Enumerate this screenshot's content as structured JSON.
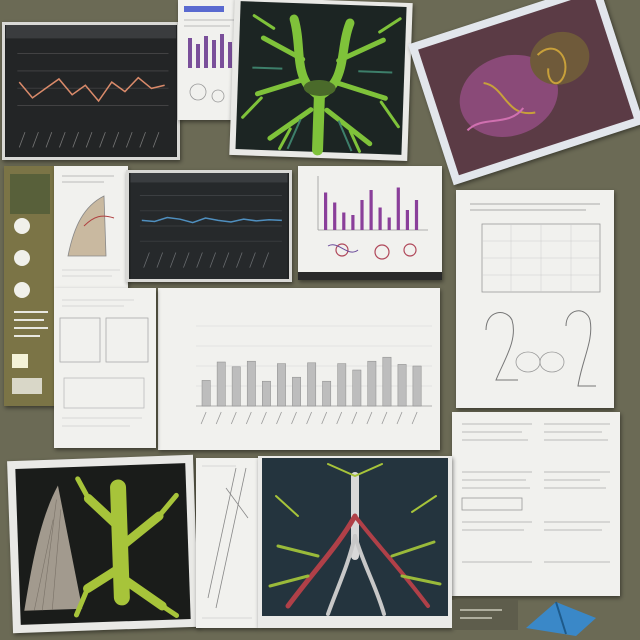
{
  "collage": {
    "background_color": "#6b6a55",
    "accent_green": "#7fc23a",
    "accent_red": "#b8404a",
    "accent_purple": "#8a4fa8",
    "center_chart": {
      "title_text": "",
      "bar_levels": [
        0.32,
        0.55,
        0.49,
        0.56,
        0.31,
        0.53,
        0.36,
        0.54,
        0.31,
        0.53,
        0.45,
        0.56,
        0.61,
        0.52,
        0.5
      ],
      "bar_color": "#bdbdbd"
    },
    "top_left_chart": {
      "line_color": "#d98a6a",
      "line_levels": [
        0.55,
        0.3,
        0.45,
        0.6,
        0.35,
        0.5,
        0.25,
        0.55,
        0.4,
        0.62,
        0.45,
        0.5
      ]
    },
    "middle_dark_chart": {
      "line_color": "#4f8fbf",
      "line_levels": [
        0.5,
        0.48,
        0.55,
        0.52,
        0.46,
        0.54,
        0.5,
        0.47,
        0.52,
        0.49,
        0.51,
        0.5
      ]
    },
    "purple_bar_chart": {
      "bar_color": "#8a3f9a",
      "bar_levels": [
        0.75,
        0.55,
        0.35,
        0.3,
        0.6,
        0.8,
        0.45,
        0.25,
        0.85,
        0.4,
        0.6
      ]
    }
  }
}
